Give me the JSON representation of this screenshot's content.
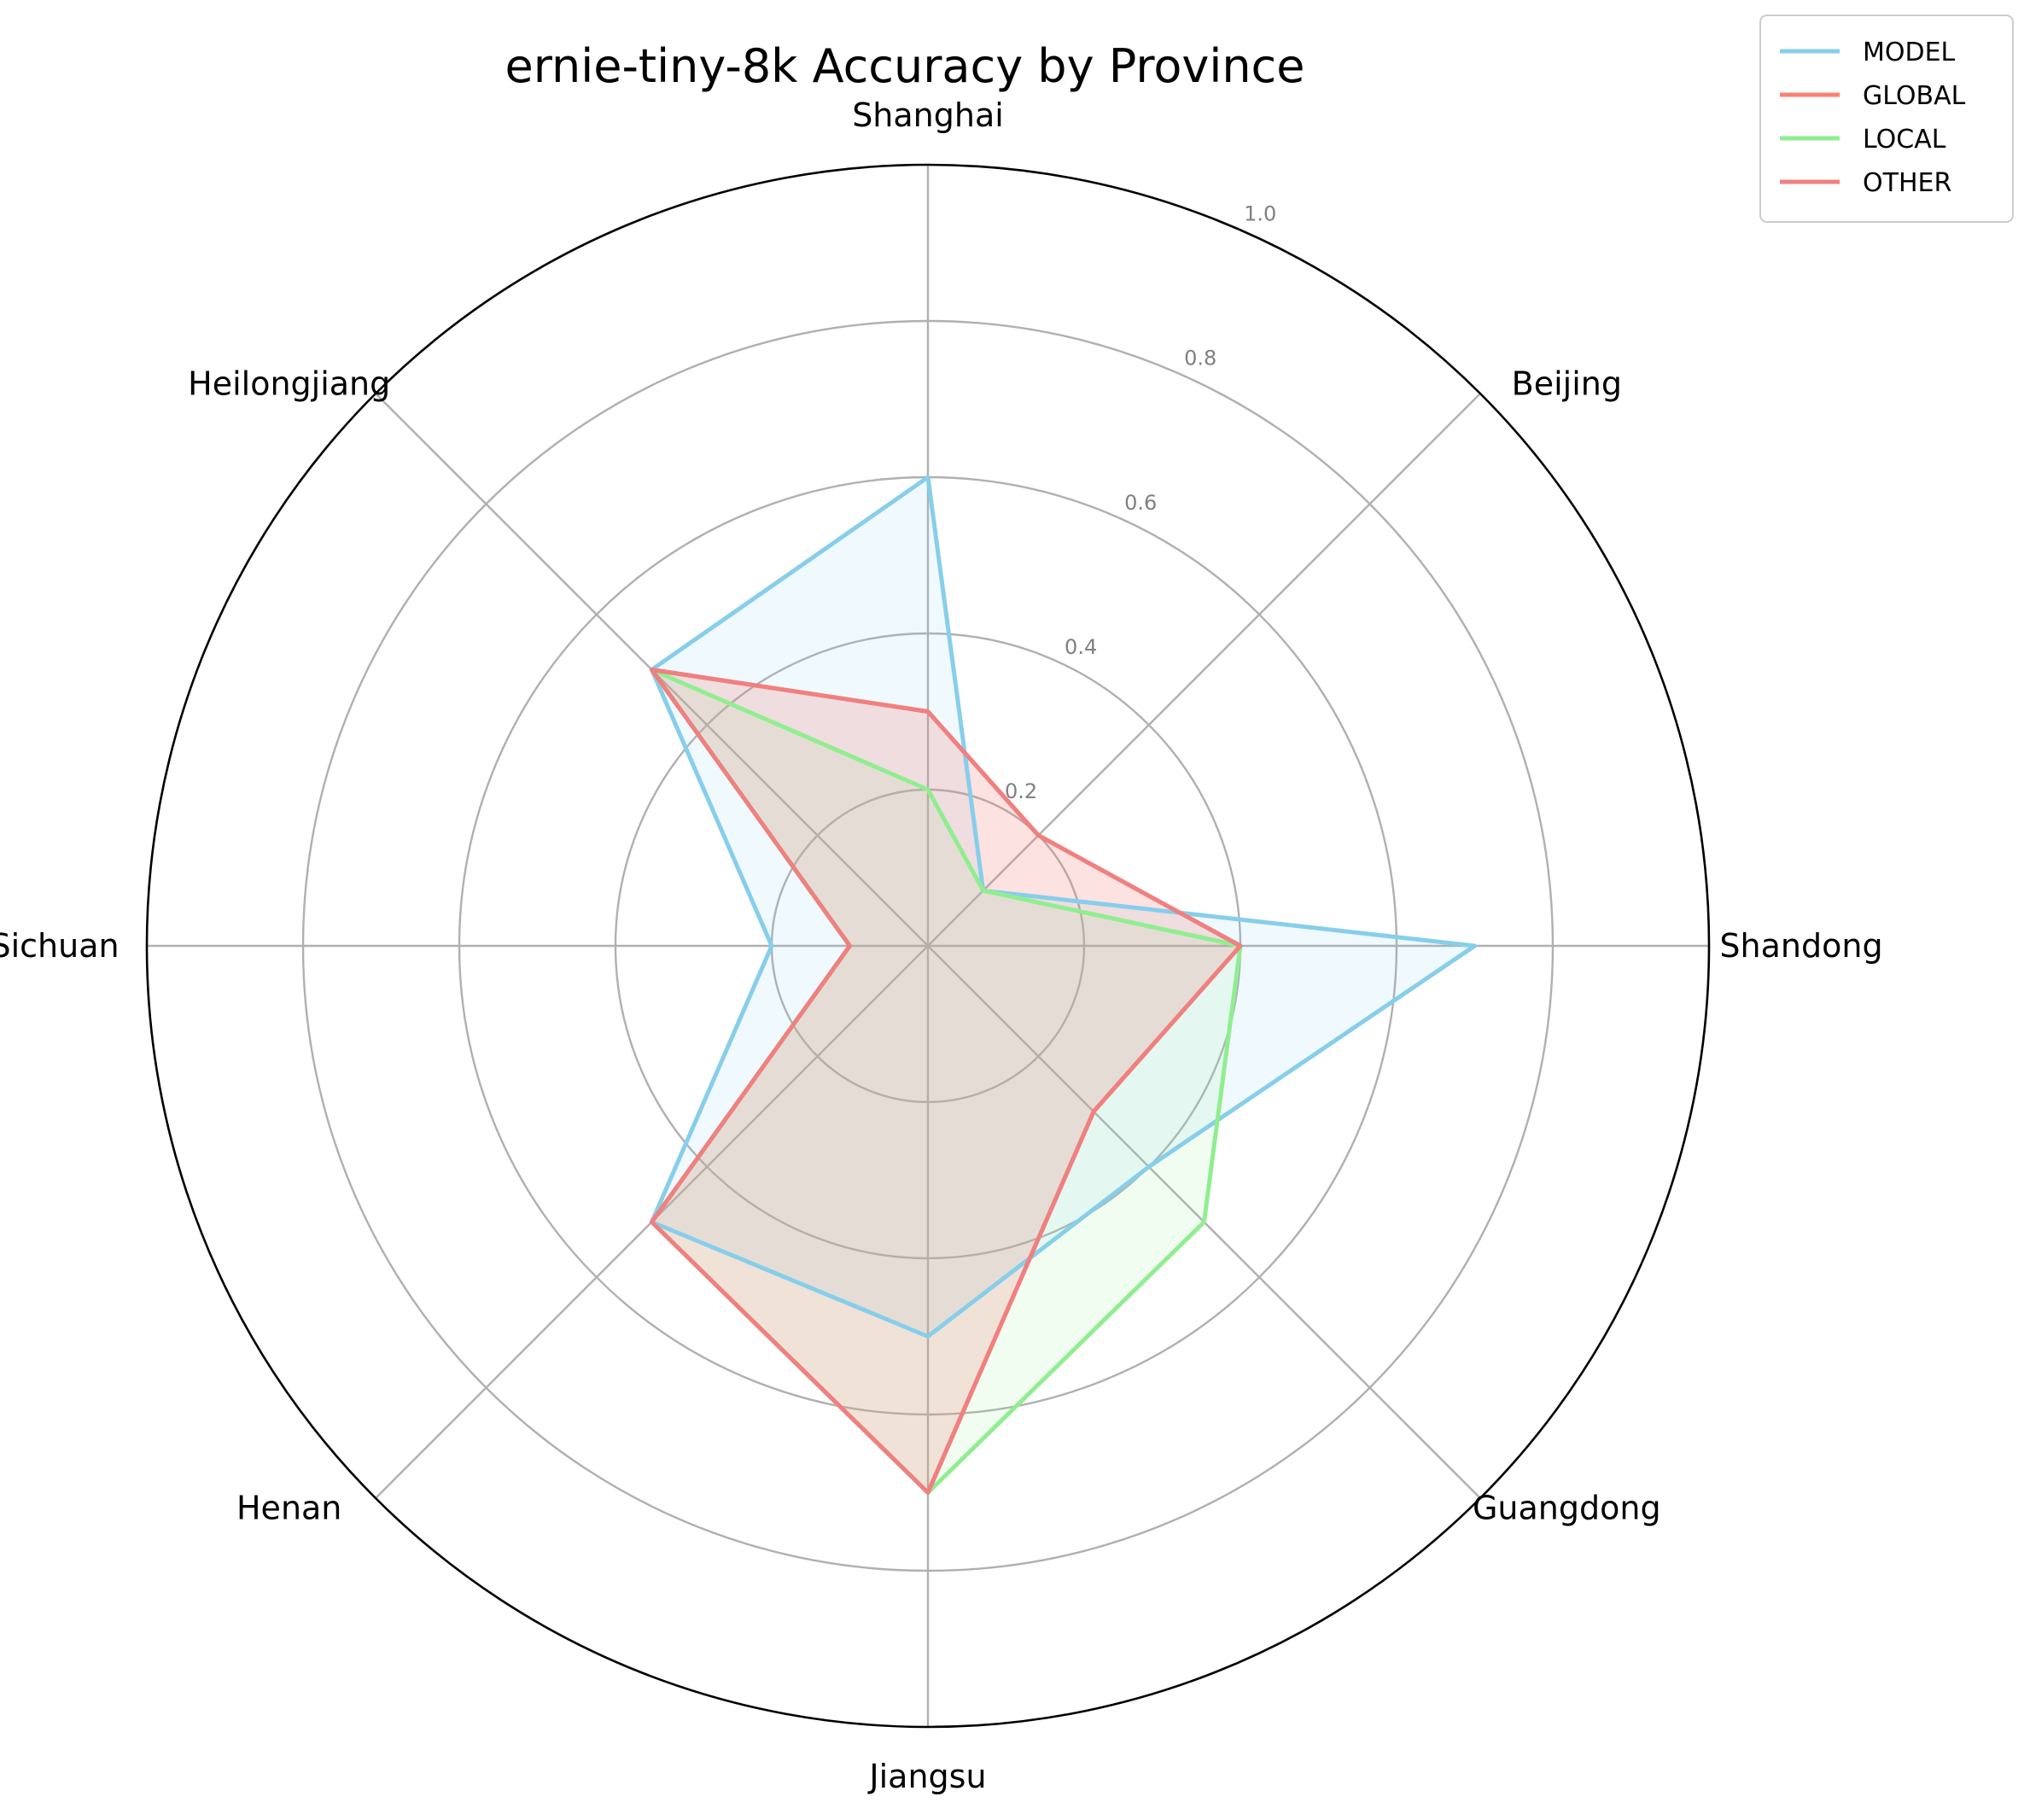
{
  "chart_data": {
    "type": "radar",
    "title": "ernie-tiny-8k Accuracy by Province",
    "categories": [
      "Shanghai",
      "Beijing",
      "Shandong",
      "Guangdong",
      "Jiangsu",
      "Henan",
      "Sichuan",
      "Heilongjiang"
    ],
    "rlim": [
      0,
      1.0
    ],
    "rticks": [
      0.2,
      0.4,
      0.6,
      0.8,
      1.0
    ],
    "rtick_labels": [
      "0.2",
      "0.4",
      "0.6",
      "0.8",
      "1.0"
    ],
    "grid": true,
    "legend_position": "top-right",
    "series": [
      {
        "name": "MODEL",
        "color": "#87CEEB",
        "values": [
          0.6,
          0.1,
          0.7,
          0.4,
          0.5,
          0.5,
          0.2,
          0.5
        ]
      },
      {
        "name": "GLOBAL",
        "color": "#FA8072",
        "values": [
          0.3,
          0.2,
          0.4,
          0.3,
          0.7,
          0.5,
          0.1,
          0.5
        ]
      },
      {
        "name": "LOCAL",
        "color": "#90EE90",
        "values": [
          0.2,
          0.1,
          0.4,
          0.5,
          0.7,
          0.5,
          0.1,
          0.5
        ]
      },
      {
        "name": "OTHER",
        "color": "#F08080",
        "values": [
          0.3,
          0.2,
          0.4,
          0.3,
          0.7,
          0.5,
          0.1,
          0.5
        ]
      }
    ]
  }
}
